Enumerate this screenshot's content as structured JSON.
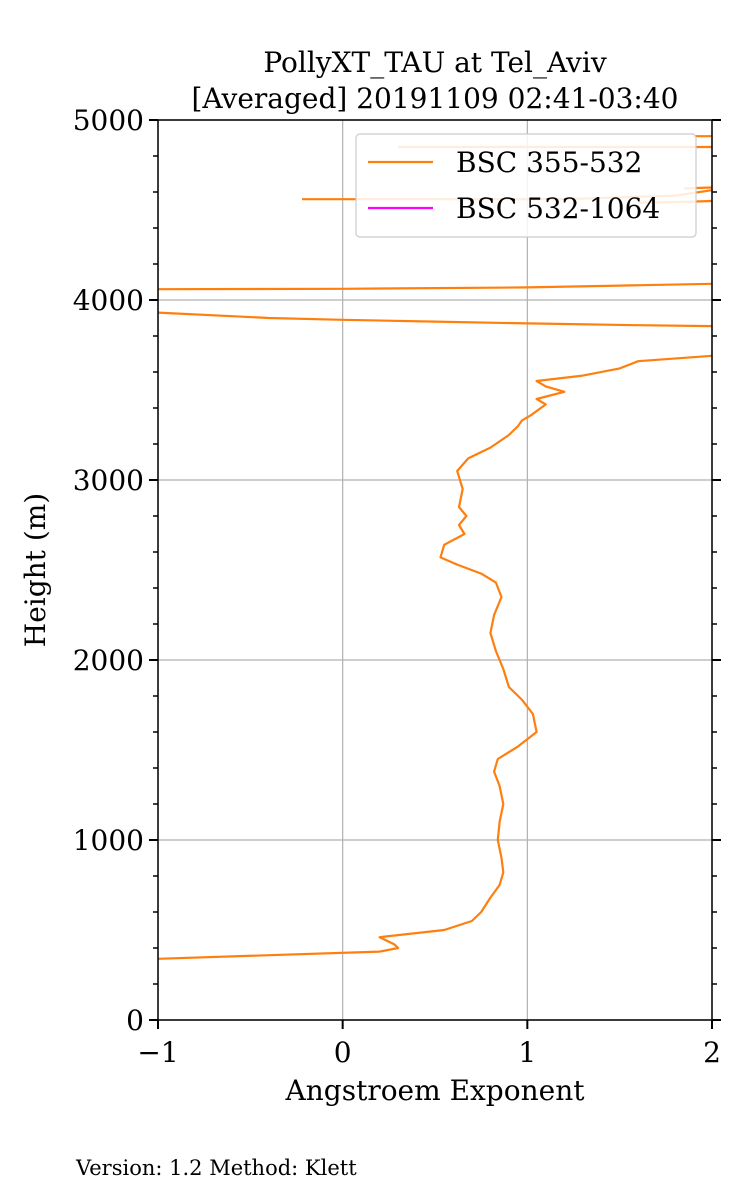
{
  "chart_data": {
    "type": "line",
    "title": "PollyXT_TAU at Tel_Aviv",
    "subtitle": "[Averaged] 20191109 02:41-03:40",
    "xlabel": "Angstroem Exponent",
    "ylabel": "Height (m)",
    "xlim": [
      -1,
      2
    ],
    "ylim": [
      0,
      5000
    ],
    "x_ticks": [
      -1,
      0,
      1,
      2
    ],
    "x_tick_labels": [
      "−1",
      "0",
      "1",
      "2"
    ],
    "y_ticks": [
      0,
      1000,
      2000,
      3000,
      4000,
      5000
    ],
    "y_tick_labels": [
      "0",
      "1000",
      "2000",
      "3000",
      "4000",
      "5000"
    ],
    "grid": true,
    "legend_position": "top-right",
    "series": [
      {
        "name": "BSC 355-532",
        "color": "#ff7f0e",
        "points": [
          [
            -1.0,
            340
          ],
          [
            0.2,
            380
          ],
          [
            0.3,
            400
          ],
          [
            0.28,
            420
          ],
          [
            0.2,
            460
          ],
          [
            0.55,
            500
          ],
          [
            0.7,
            550
          ],
          [
            0.75,
            600
          ],
          [
            0.8,
            680
          ],
          [
            0.85,
            750
          ],
          [
            0.87,
            820
          ],
          [
            0.86,
            900
          ],
          [
            0.84,
            1000
          ],
          [
            0.85,
            1100
          ],
          [
            0.87,
            1200
          ],
          [
            0.85,
            1300
          ],
          [
            0.82,
            1380
          ],
          [
            0.84,
            1450
          ],
          [
            0.95,
            1520
          ],
          [
            1.05,
            1600
          ],
          [
            1.03,
            1700
          ],
          [
            0.97,
            1780
          ],
          [
            0.9,
            1850
          ],
          [
            0.87,
            1950
          ],
          [
            0.83,
            2050
          ],
          [
            0.8,
            2150
          ],
          [
            0.82,
            2250
          ],
          [
            0.86,
            2350
          ],
          [
            0.83,
            2430
          ],
          [
            0.75,
            2480
          ],
          [
            0.62,
            2530
          ],
          [
            0.53,
            2570
          ],
          [
            0.55,
            2640
          ],
          [
            0.66,
            2700
          ],
          [
            0.63,
            2750
          ],
          [
            0.67,
            2800
          ],
          [
            0.63,
            2850
          ],
          [
            0.65,
            2950
          ],
          [
            0.62,
            3050
          ],
          [
            0.68,
            3120
          ],
          [
            0.8,
            3180
          ],
          [
            0.9,
            3250
          ],
          [
            0.95,
            3300
          ],
          [
            0.97,
            3330
          ],
          [
            1.02,
            3360
          ],
          [
            1.1,
            3420
          ],
          [
            1.05,
            3450
          ],
          [
            1.2,
            3490
          ],
          [
            1.1,
            3520
          ],
          [
            1.05,
            3550
          ],
          [
            1.3,
            3580
          ],
          [
            1.5,
            3620
          ],
          [
            1.6,
            3660
          ],
          [
            2.0,
            3690
          ]
        ],
        "segments": [
          [
            [
              -1.0,
              3930
            ],
            [
              -0.4,
              3900
            ],
            [
              0.0,
              3890
            ],
            [
              0.5,
              3880
            ],
            [
              1.0,
              3870
            ],
            [
              1.6,
              3860
            ],
            [
              2.0,
              3855
            ]
          ],
          [
            [
              -1.0,
              4060
            ],
            [
              0.0,
              4062
            ],
            [
              1.0,
              4070
            ],
            [
              1.5,
              4080
            ],
            [
              2.0,
              4090
            ]
          ],
          [
            [
              -0.22,
              4560
            ],
            [
              0.5,
              4560
            ],
            [
              1.2,
              4560
            ],
            [
              1.8,
              4580
            ],
            [
              2.0,
              4610
            ]
          ],
          [
            [
              1.6,
              4540
            ],
            [
              1.85,
              4545
            ],
            [
              2.0,
              4550
            ]
          ],
          [
            [
              1.85,
              4620
            ],
            [
              2.0,
              4625
            ]
          ],
          [
            [
              0.3,
              4850
            ],
            [
              1.0,
              4850
            ],
            [
              1.9,
              4850
            ],
            [
              2.0,
              4850
            ]
          ],
          [
            [
              1.9,
              4910
            ],
            [
              2.0,
              4910
            ]
          ]
        ]
      },
      {
        "name": "BSC 532-1064",
        "color": "#ff00ff",
        "points": []
      }
    ]
  },
  "footer": {
    "text": "Version: 1.2  Method: Klett"
  }
}
